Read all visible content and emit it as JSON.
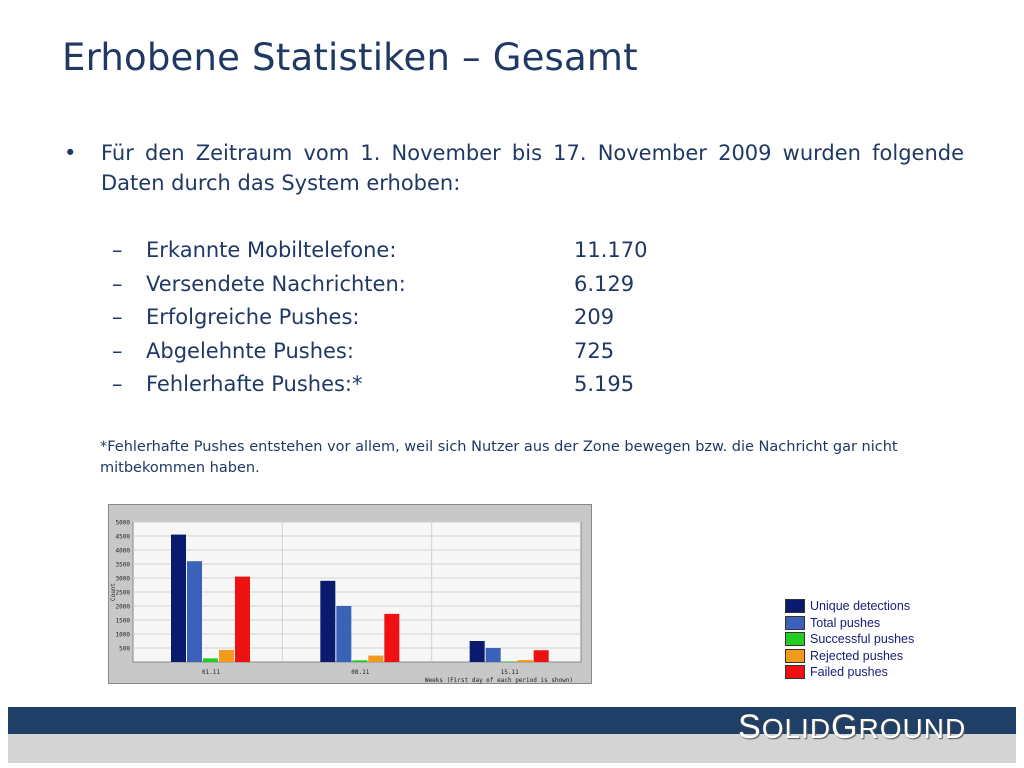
{
  "title": "Erhobene Statistiken – Gesamt",
  "bullet": {
    "marker": "•",
    "text": "Für den Zeitraum vom 1. November bis 17. November 2009 wurden folgende Daten durch das System erhoben:"
  },
  "stats": [
    {
      "dash": "–",
      "label": "Erkannte Mobiltelefone:",
      "value": "11.170"
    },
    {
      "dash": "–",
      "label": "Versendete Nachrichten:",
      "value": "6.129"
    },
    {
      "dash": "–",
      "label": "Erfolgreiche Pushes:",
      "value": "209"
    },
    {
      "dash": "–",
      "label": "Abgelehnte Pushes:",
      "value": "725"
    },
    {
      "dash": "–",
      "label": "Fehlerhafte Pushes:*",
      "value": "5.195"
    }
  ],
  "footnote": "*Fehlerhafte Pushes entstehen vor allem, weil sich Nutzer aus der Zone bewegen bzw. die Nachricht gar nicht mitbekommen haben.",
  "logo": {
    "s": "S",
    "olid": "OLID",
    "g": "G",
    "round": "ROUND"
  },
  "chart_data": {
    "type": "bar",
    "categories": [
      "01.11",
      "08.11",
      "15.11"
    ],
    "xlabel": "Weeks (First day of each period is shown)",
    "ylabel": "Count",
    "ylim": [
      0,
      5000
    ],
    "yticks": [
      500,
      1000,
      1500,
      2000,
      2500,
      3000,
      3500,
      4000,
      4500,
      5000
    ],
    "grid": true,
    "legend_position": "right",
    "series": [
      {
        "name": "Unique detections",
        "color": "#0a1a6e",
        "values": [
          4550,
          2900,
          750
        ]
      },
      {
        "name": "Total pushes",
        "color": "#3a62b8",
        "values": [
          3600,
          2000,
          500
        ]
      },
      {
        "name": "Successful pushes",
        "color": "#22cc22",
        "values": [
          130,
          60,
          20
        ]
      },
      {
        "name": "Rejected pushes",
        "color": "#f39a1c",
        "values": [
          430,
          230,
          70
        ]
      },
      {
        "name": "Failed pushes",
        "color": "#ee1111",
        "values": [
          3050,
          1720,
          420
        ]
      }
    ]
  }
}
